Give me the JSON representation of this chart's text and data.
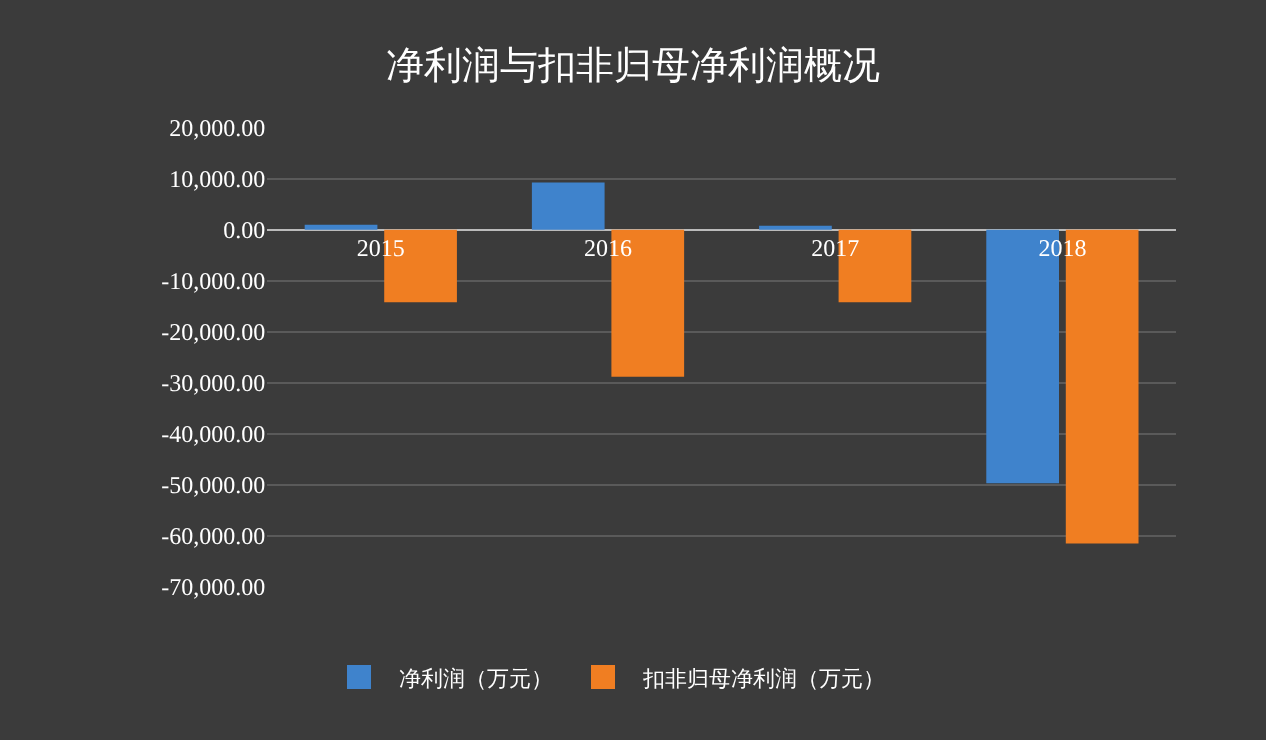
{
  "chart_data": {
    "type": "bar",
    "title": "净利润与扣非归母净利润概况",
    "categories": [
      "2015",
      "2016",
      "2017",
      "2018"
    ],
    "series": [
      {
        "name": "净利润（万元）",
        "color": "#3f83cc",
        "values": [
          1000,
          9300,
          800,
          -49700
        ]
      },
      {
        "name": "扣非归母净利润（万元）",
        "color": "#f07e22",
        "values": [
          -14200,
          -28800,
          -14200,
          -61500
        ]
      }
    ],
    "ylim": [
      -70000,
      20000
    ],
    "yticks": [
      {
        "value": 20000,
        "label": "20,000.00"
      },
      {
        "value": 10000,
        "label": "10,000.00"
      },
      {
        "value": 0,
        "label": "0.00"
      },
      {
        "value": -10000,
        "label": "-10,000.00"
      },
      {
        "value": -20000,
        "label": "-20,000.00"
      },
      {
        "value": -30000,
        "label": "-30,000.00"
      },
      {
        "value": -40000,
        "label": "-40,000.00"
      },
      {
        "value": -50000,
        "label": "-50,000.00"
      },
      {
        "value": -60000,
        "label": "-60,000.00"
      },
      {
        "value": -70000,
        "label": "-70,000.00"
      }
    ],
    "grid": "y",
    "legend": "bottom"
  }
}
